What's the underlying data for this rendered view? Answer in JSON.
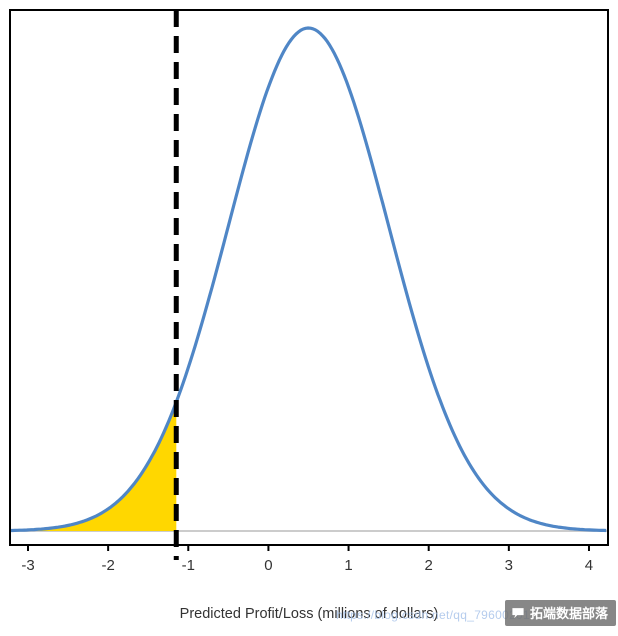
{
  "chart_data": {
    "type": "area",
    "title": "",
    "xlabel": "Predicted Profit/Loss (millions of dollars)",
    "ylabel": "",
    "x_ticks": [
      -3,
      -2,
      -1,
      0,
      1,
      2,
      3,
      4
    ],
    "xlim": [
      -3.22,
      4.24
    ],
    "ylim": [
      0,
      0.42
    ],
    "grid": false,
    "legend": false,
    "distribution": {
      "kind": "normal",
      "mean": 0.5,
      "sd": 1.0,
      "peak_density": 0.399
    },
    "threshold": -1.15,
    "shaded_region": "area under curve left of threshold",
    "curve_color": "#4f86c6",
    "fill_color": "#ffd700",
    "threshold_line_color": "#000000",
    "baseline_color": "#cccccc",
    "border_color": "#000000"
  },
  "watermark": {
    "faint_text": "https://blog.csdn.net/qq_79600201",
    "badge_text": "拓端数据部落"
  }
}
